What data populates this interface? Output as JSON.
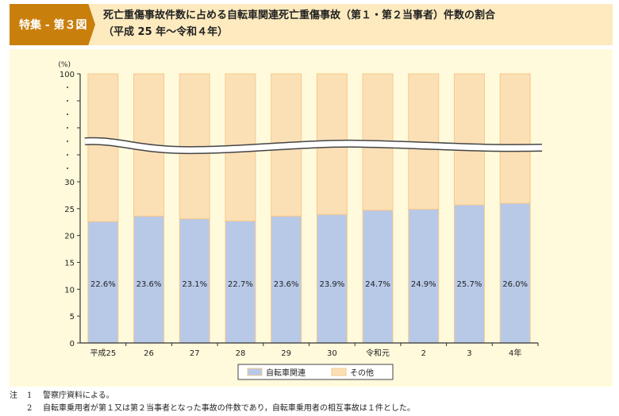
{
  "header": {
    "tag": "特集 - 第３図",
    "title_line1": "死亡重傷事故件数に占める自転車関連死亡重傷事故（第１・第２当事者）件数の割合",
    "title_line2": "（平成 25 年～令和４年）"
  },
  "chart_data": {
    "type": "bar",
    "stacked": true,
    "ylabel": "(%)",
    "ylim": [
      0,
      100
    ],
    "axis_break": [
      30,
      100
    ],
    "yticks": [
      "0",
      "5",
      "10",
      "15",
      "20",
      "25",
      "30",
      "100"
    ],
    "categories": [
      "平成25",
      "26",
      "27",
      "28",
      "29",
      "30",
      "令和元",
      "2",
      "3",
      "4年"
    ],
    "series": [
      {
        "name": "自転車関連",
        "color": "#b8c9e8",
        "values": [
          22.6,
          23.6,
          23.1,
          22.7,
          23.6,
          23.9,
          24.7,
          24.9,
          25.7,
          26.0
        ],
        "labels": [
          "22.6%",
          "23.6%",
          "23.1%",
          "22.7%",
          "23.6%",
          "23.9%",
          "24.7%",
          "24.9%",
          "25.7%",
          "26.0%"
        ]
      },
      {
        "name": "その他",
        "color": "#fbe0b6",
        "values": [
          77.4,
          76.4,
          76.9,
          77.3,
          76.4,
          76.1,
          75.3,
          75.1,
          74.3,
          74.0
        ]
      }
    ],
    "legend": "bottom"
  },
  "notes": [
    {
      "label": "注",
      "num": "1",
      "text": "警察庁資料による。"
    },
    {
      "label": "",
      "num": "2",
      "text": "自転車乗用者が第１又は第２当事者となった事故の件数であり，自転車乗用者の相互事故は１件とした。"
    }
  ]
}
